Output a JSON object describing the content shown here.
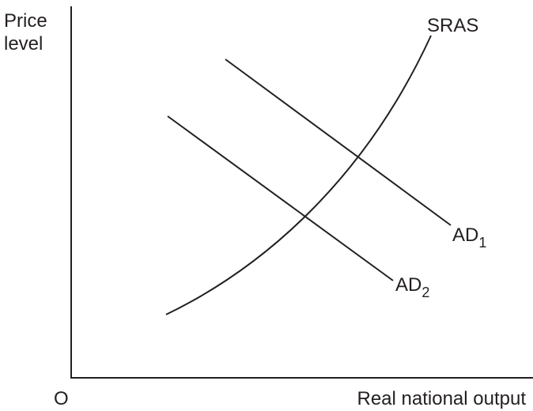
{
  "axes": {
    "y_label": [
      "Price",
      "level"
    ],
    "origin": "O",
    "x_label": "Real national output"
  },
  "curves": [
    {
      "label": "SRAS"
    },
    {
      "label": {
        "text": "AD",
        "subscript": "1"
      }
    },
    {
      "label": {
        "text": "AD",
        "subscript": "2"
      }
    }
  ]
}
